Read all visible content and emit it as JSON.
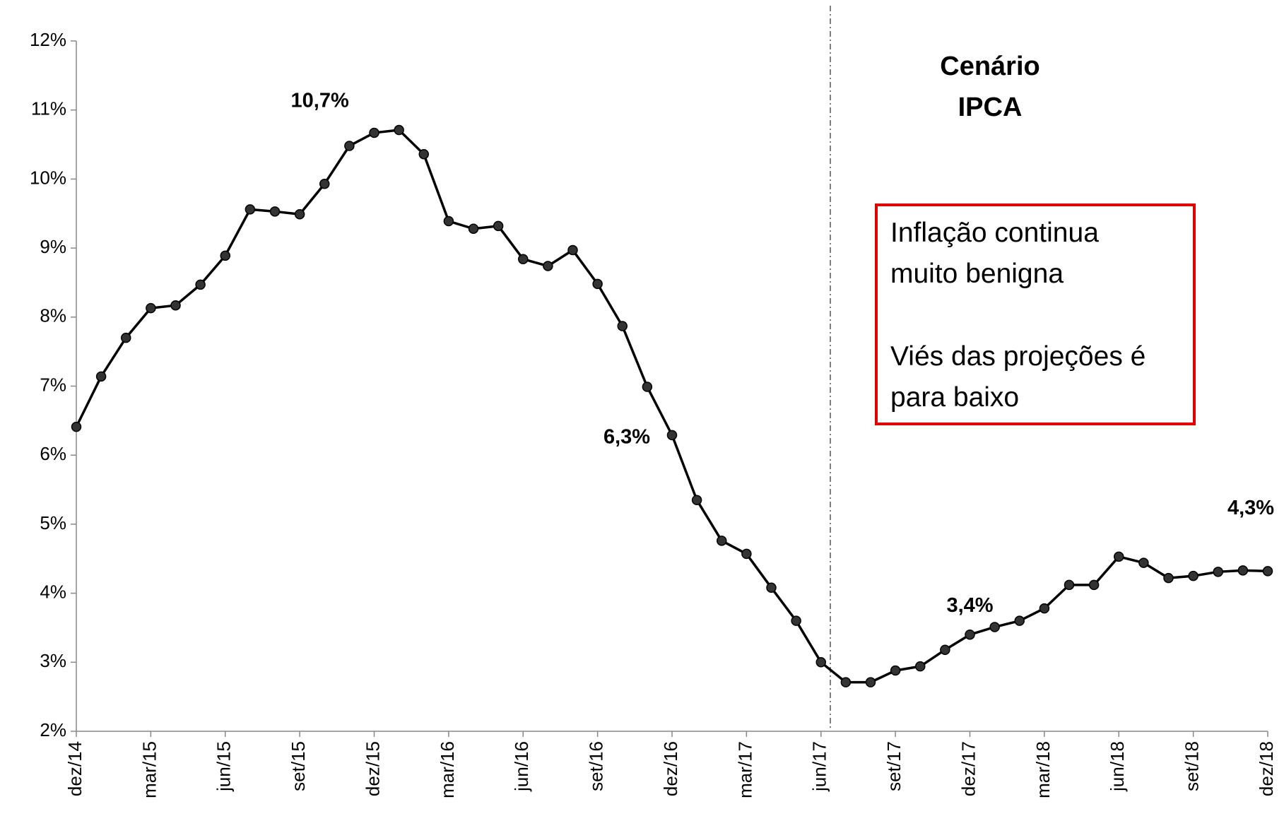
{
  "chart_data": {
    "type": "line",
    "title": [
      "Cenário",
      "IPCA"
    ],
    "annotation": [
      "Inflação continua",
      "muito benigna",
      "Viés das projeções é",
      "para baixo"
    ],
    "categories": [
      "dez/14",
      null,
      null,
      "mar/15",
      null,
      null,
      "jun/15",
      null,
      null,
      "set/15",
      null,
      null,
      "dez/15",
      null,
      null,
      "mar/16",
      null,
      null,
      "jun/16",
      null,
      null,
      "set/16",
      null,
      null,
      "dez/16",
      null,
      null,
      "mar/17",
      null,
      null,
      "jun/17",
      null,
      null,
      "set/17",
      null,
      null,
      "dez/17",
      null,
      null,
      "mar/18",
      null,
      null,
      "jun/18",
      null,
      null,
      "set/18",
      null,
      null,
      "dez/18"
    ],
    "series": [
      {
        "color": "#000000",
        "values": [
          6.41,
          7.14,
          7.7,
          8.13,
          8.17,
          8.47,
          8.89,
          9.56,
          9.53,
          9.49,
          9.93,
          10.48,
          10.67,
          10.71,
          10.36,
          9.39,
          9.28,
          9.32,
          8.84,
          8.74,
          8.97,
          8.48,
          7.87,
          6.99,
          6.29,
          5.35,
          4.76,
          4.57,
          4.08,
          3.6,
          3.0,
          2.71,
          2.71,
          2.88,
          2.94,
          3.18,
          3.4,
          3.51,
          3.6,
          3.78,
          4.12,
          4.12,
          4.53,
          4.44,
          4.22,
          4.25,
          4.31,
          4.33,
          4.32
        ],
        "value_labels": [
          null,
          null,
          null,
          null,
          null,
          null,
          null,
          null,
          null,
          null,
          null,
          null,
          null,
          "10,7%",
          null,
          null,
          null,
          null,
          null,
          null,
          null,
          null,
          null,
          null,
          "6,3%",
          null,
          null,
          null,
          null,
          null,
          null,
          null,
          null,
          null,
          null,
          null,
          "3,4%",
          null,
          null,
          null,
          null,
          null,
          null,
          null,
          null,
          null,
          null,
          null,
          "4,3%"
        ]
      }
    ],
    "ylim": [
      2,
      12
    ],
    "yticks": [
      {
        "value": 2,
        "label": "2%"
      },
      {
        "value": 3,
        "label": "3%"
      },
      {
        "value": 4,
        "label": "4%"
      },
      {
        "value": 5,
        "label": "5%"
      },
      {
        "value": 6,
        "label": "6%"
      },
      {
        "value": 7,
        "label": "7%"
      },
      {
        "value": 8,
        "label": "8%"
      },
      {
        "value": 9,
        "label": "9%"
      },
      {
        "value": 10,
        "label": "10%"
      },
      {
        "value": 11,
        "label": "11%"
      },
      {
        "value": 12,
        "label": "12%"
      }
    ],
    "grid": false
  }
}
